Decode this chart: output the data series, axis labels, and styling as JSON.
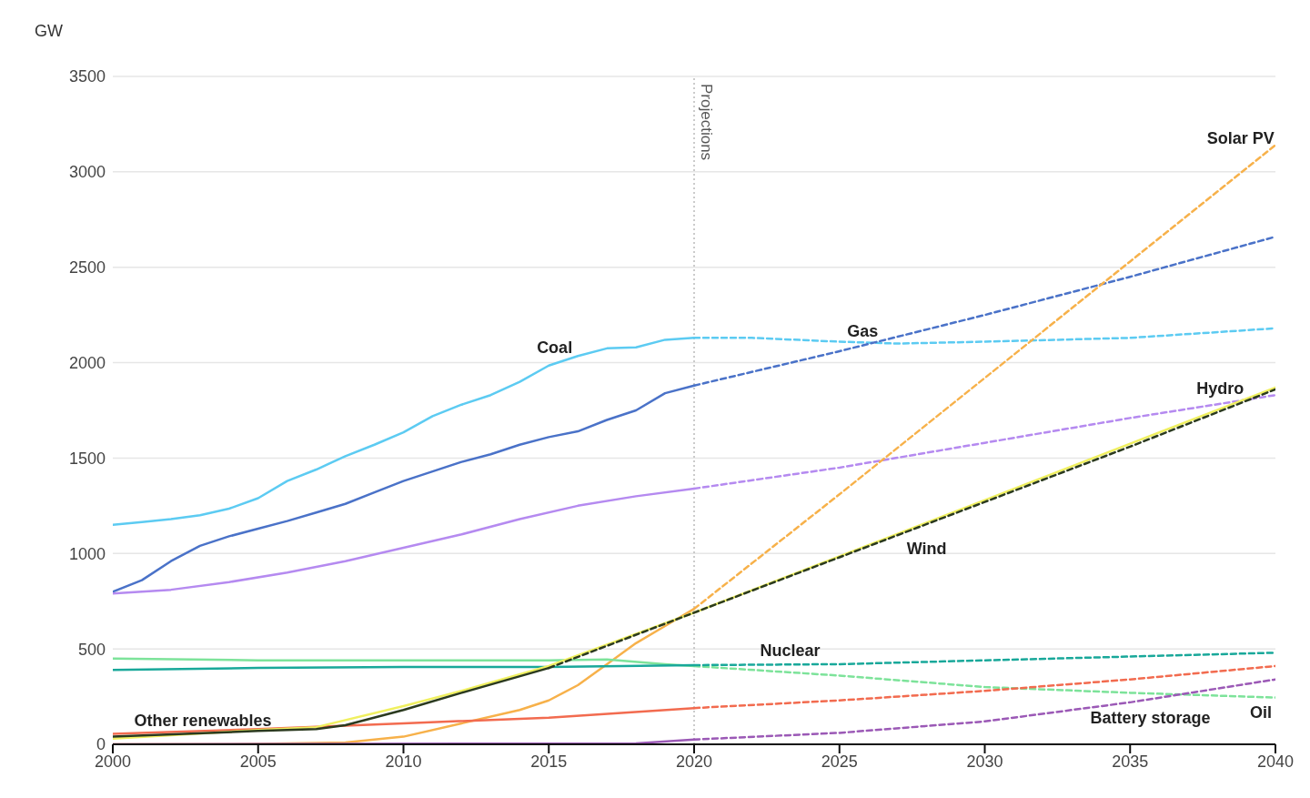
{
  "chart_data": {
    "type": "line",
    "ylabel": "GW",
    "xlim": [
      2000,
      2040
    ],
    "ylim": [
      0,
      3500
    ],
    "xticks": [
      2000,
      2005,
      2010,
      2015,
      2020,
      2025,
      2030,
      2035,
      2040
    ],
    "yticks": [
      0,
      500,
      1000,
      1500,
      2000,
      2500,
      3000,
      3500
    ],
    "grid": "y",
    "legend": false,
    "ref_lines": [
      {
        "axis": "x",
        "value": 2020,
        "label": "Projections",
        "color": "#bbbbbb",
        "line_style": "dotted"
      }
    ],
    "series": [
      {
        "name": "Coal",
        "color": "#5ccbf2",
        "line_style": "solid",
        "x": [
          2000,
          2001,
          2002,
          2003,
          2004,
          2005,
          2006,
          2007,
          2008,
          2009,
          2010,
          2011,
          2012,
          2013,
          2014,
          2015,
          2016,
          2017,
          2018,
          2019,
          2020
        ],
        "values": [
          1150,
          1165,
          1180,
          1200,
          1235,
          1290,
          1380,
          1440,
          1510,
          1570,
          1635,
          1720,
          1780,
          1830,
          1900,
          1985,
          2035,
          2075,
          2080,
          2120,
          2130
        ]
      },
      {
        "color": "#5ccbf2",
        "line_style": "dashed",
        "x": [
          2020,
          2022,
          2025,
          2027,
          2030,
          2035,
          2040
        ],
        "values": [
          2130,
          2130,
          2110,
          2100,
          2110,
          2130,
          2180
        ]
      },
      {
        "color": "#4a72c8",
        "line_style": "solid",
        "x": [
          2000,
          2001,
          2002,
          2003,
          2004,
          2005,
          2006,
          2007,
          2008,
          2009,
          2010,
          2011,
          2012,
          2013,
          2014,
          2015,
          2016,
          2017,
          2018,
          2019,
          2020
        ],
        "values": [
          800,
          860,
          960,
          1040,
          1090,
          1130,
          1170,
          1215,
          1260,
          1320,
          1380,
          1430,
          1480,
          1520,
          1570,
          1610,
          1640,
          1700,
          1750,
          1840,
          1880
        ]
      },
      {
        "name": "Gas",
        "color": "#4a72c8",
        "line_style": "dashed",
        "x": [
          2020,
          2025,
          2030,
          2035,
          2040
        ],
        "values": [
          1880,
          2060,
          2250,
          2450,
          2660
        ]
      },
      {
        "color": "#b58af0",
        "line_style": "solid",
        "x": [
          2000,
          2002,
          2004,
          2006,
          2008,
          2010,
          2012,
          2014,
          2016,
          2018,
          2020
        ],
        "values": [
          790,
          810,
          850,
          900,
          960,
          1030,
          1100,
          1180,
          1250,
          1300,
          1340
        ]
      },
      {
        "name": "Hydro",
        "color": "#b58af0",
        "line_style": "dashed",
        "x": [
          2020,
          2025,
          2030,
          2035,
          2040
        ],
        "values": [
          1340,
          1450,
          1580,
          1710,
          1830
        ]
      },
      {
        "color": "#f7b14a",
        "line_style": "solid",
        "x": [
          2000,
          2005,
          2008,
          2010,
          2012,
          2014,
          2015,
          2016,
          2017,
          2018,
          2019,
          2020
        ],
        "values": [
          0,
          2,
          10,
          40,
          110,
          180,
          230,
          310,
          420,
          530,
          620,
          710
        ]
      },
      {
        "name": "Solar PV",
        "color": "#f7b14a",
        "line_style": "dashed",
        "x": [
          2020,
          2025,
          2030,
          2035,
          2040
        ],
        "values": [
          710,
          1310,
          1920,
          2530,
          3140
        ]
      },
      {
        "color": "#7de39a",
        "line_style": "solid",
        "x": [
          2000,
          2005,
          2010,
          2015,
          2017,
          2019,
          2020
        ],
        "values": [
          450,
          440,
          440,
          440,
          445,
          420,
          410
        ]
      },
      {
        "name": "Oil",
        "color": "#7de39a",
        "line_style": "dashed",
        "x": [
          2020,
          2025,
          2030,
          2035,
          2040
        ],
        "values": [
          410,
          360,
          300,
          270,
          245
        ]
      },
      {
        "color": "#19a89a",
        "line_style": "solid",
        "x": [
          2000,
          2005,
          2010,
          2015,
          2020
        ],
        "values": [
          390,
          400,
          405,
          405,
          415
        ]
      },
      {
        "name": "Nuclear",
        "color": "#19a89a",
        "line_style": "dashed",
        "x": [
          2020,
          2025,
          2030,
          2035,
          2040
        ],
        "values": [
          415,
          420,
          440,
          460,
          480
        ]
      },
      {
        "name": "Other renewables",
        "color": "#f26b4f",
        "line_style": "solid",
        "x": [
          2000,
          2005,
          2010,
          2015,
          2020
        ],
        "values": [
          55,
          80,
          110,
          140,
          190
        ]
      },
      {
        "color": "#f26b4f",
        "line_style": "dashed",
        "x": [
          2020,
          2025,
          2030,
          2035,
          2040
        ],
        "values": [
          190,
          230,
          280,
          340,
          410
        ]
      },
      {
        "color": "#9b59b6",
        "line_style": "solid",
        "x": [
          2000,
          2018,
          2020
        ],
        "values": [
          0,
          5,
          25
        ]
      },
      {
        "name": "Battery storage",
        "color": "#9b59b6",
        "line_style": "dashed",
        "x": [
          2020,
          2025,
          2030,
          2035,
          2040
        ],
        "values": [
          25,
          60,
          120,
          220,
          340
        ]
      },
      {
        "color": "#f0f060",
        "line_style": "solid",
        "x": [
          2000,
          2005,
          2007,
          2010,
          2012,
          2015,
          2020,
          2025,
          2030,
          2035,
          2040
        ],
        "values": [
          30,
          75,
          90,
          200,
          280,
          410,
          690,
          985,
          1280,
          1575,
          1870
        ]
      },
      {
        "color": "#2b3a1f",
        "line_style": "solid",
        "x": [
          2000,
          2005,
          2007,
          2008,
          2010,
          2012,
          2015
        ],
        "values": [
          40,
          70,
          80,
          100,
          180,
          270,
          400
        ]
      },
      {
        "name": "Wind",
        "color": "#2b3a1f",
        "line_style": "dashed",
        "x": [
          2015,
          2020,
          2025,
          2030,
          2035,
          2040
        ],
        "values": [
          400,
          690,
          980,
          1270,
          1560,
          1860
        ]
      }
    ]
  }
}
